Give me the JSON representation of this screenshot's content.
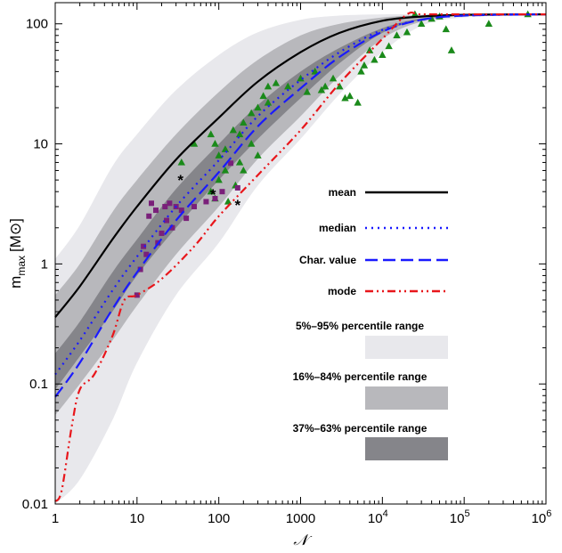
{
  "chart_data": {
    "type": "line",
    "scale": {
      "x": "log",
      "y": "log"
    },
    "xlim": [
      1,
      1000000
    ],
    "ylim": [
      0.01,
      150
    ],
    "xlabel": "𝒩",
    "ylabel": {
      "main": "m",
      "sub": "max",
      "unit": "[M⊙]"
    },
    "x_ticks": [
      {
        "value": 1,
        "label": "1"
      },
      {
        "value": 10,
        "label": "10"
      },
      {
        "value": 100,
        "label": "100"
      },
      {
        "value": 1000,
        "label": "1000"
      },
      {
        "value": 10000,
        "label": "10",
        "exp": "4"
      },
      {
        "value": 100000,
        "label": "10",
        "exp": "5"
      },
      {
        "value": 1000000,
        "label": "10",
        "exp": "6"
      }
    ],
    "y_ticks": [
      {
        "value": 0.01,
        "label": "0.01"
      },
      {
        "value": 0.1,
        "label": "0.1"
      },
      {
        "value": 1,
        "label": "1"
      },
      {
        "value": 10,
        "label": "10"
      },
      {
        "value": 100,
        "label": "100"
      }
    ],
    "bands": [
      {
        "name": "5%–95% percentile range",
        "color": "#e8e8ec",
        "x": [
          1,
          2,
          5,
          10,
          30,
          100,
          300,
          1000,
          3000,
          10000,
          30000,
          100000,
          1000000
        ],
        "low": [
          0.01,
          0.016,
          0.05,
          0.15,
          0.55,
          1.5,
          4.5,
          11,
          26,
          58,
          96,
          113,
          120
        ],
        "high": [
          1.1,
          2.1,
          6.5,
          12,
          28,
          55,
          85,
          108,
          117,
          120,
          120,
          120,
          120
        ]
      },
      {
        "name": "16%–84% percentile range",
        "color": "#b8b8bc",
        "x": [
          1,
          2,
          5,
          10,
          30,
          100,
          300,
          1000,
          3000,
          10000,
          30000,
          100000,
          1000000
        ],
        "low": [
          0.055,
          0.1,
          0.23,
          0.45,
          1.2,
          3.0,
          7.5,
          17,
          37,
          75,
          104,
          116,
          120
        ],
        "high": [
          0.55,
          1.0,
          2.7,
          5.0,
          12,
          27,
          50,
          80,
          100,
          113,
          118,
          120,
          120
        ]
      },
      {
        "name": "37%–63% percentile range",
        "color": "#85858a",
        "x": [
          1,
          2,
          5,
          10,
          30,
          100,
          300,
          1000,
          3000,
          10000,
          30000,
          100000,
          1000000
        ],
        "low": [
          0.09,
          0.17,
          0.4,
          0.8,
          2.0,
          5.0,
          11,
          24,
          47,
          84,
          108,
          117,
          120
        ],
        "high": [
          0.18,
          0.33,
          0.85,
          1.6,
          4.2,
          10,
          21,
          40,
          63,
          92,
          111,
          118,
          120
        ]
      }
    ],
    "series": [
      {
        "name": "mean",
        "color": "#000000",
        "dash": "",
        "x": [
          1,
          2,
          5,
          10,
          30,
          100,
          300,
          1000,
          3000,
          10000,
          30000,
          100000,
          1000000
        ],
        "y": [
          0.36,
          0.65,
          1.6,
          3.0,
          7.4,
          16.5,
          33,
          58,
          84,
          106,
          115,
          119,
          120
        ]
      },
      {
        "name": "median",
        "color": "#1a1aff",
        "dash": "2,5",
        "x": [
          1,
          2,
          5,
          10,
          30,
          100,
          300,
          1000,
          3000,
          10000,
          30000,
          100000,
          1000000
        ],
        "y": [
          0.12,
          0.23,
          0.6,
          1.15,
          3.0,
          7.3,
          17,
          34,
          58,
          89,
          108,
          117,
          120
        ]
      },
      {
        "name": "Char. value",
        "color": "#1a1aff",
        "dash": "14,6",
        "x": [
          1,
          2,
          5,
          10,
          30,
          100,
          300,
          1000,
          3000,
          10000,
          30000,
          100000,
          1000000
        ],
        "y": [
          0.078,
          0.15,
          0.42,
          0.85,
          2.3,
          5.8,
          14,
          29,
          53,
          86,
          108,
          117,
          120
        ]
      },
      {
        "name": "mode",
        "color": "#e8161b",
        "dash": "9,4,2,4,2,4",
        "x": [
          1,
          1.2,
          1.6,
          2,
          3,
          5,
          7,
          10,
          20,
          50,
          100,
          300,
          1000,
          3000,
          10000,
          20000,
          30000,
          100000,
          1000000
        ],
        "y": [
          0.0105,
          0.013,
          0.045,
          0.09,
          0.12,
          0.25,
          0.5,
          0.55,
          0.75,
          1.4,
          2.5,
          5.5,
          13,
          32,
          75,
          120,
          120,
          120,
          120
        ]
      }
    ],
    "scatter": [
      {
        "marker": "triangle",
        "color": "#1a8a1a",
        "points": [
          [
            35,
            7
          ],
          [
            50,
            10
          ],
          [
            80,
            12
          ],
          [
            90,
            10
          ],
          [
            100,
            8
          ],
          [
            120,
            9
          ],
          [
            150,
            13
          ],
          [
            180,
            12
          ],
          [
            200,
            15
          ],
          [
            250,
            18
          ],
          [
            300,
            20
          ],
          [
            350,
            25
          ],
          [
            400,
            30
          ],
          [
            500,
            32
          ],
          [
            700,
            30
          ],
          [
            1000,
            35
          ],
          [
            1500,
            40
          ],
          [
            2000,
            30
          ],
          [
            2500,
            35
          ],
          [
            3000,
            30
          ],
          [
            4000,
            25
          ],
          [
            5000,
            22
          ],
          [
            6000,
            45
          ],
          [
            8000,
            50
          ],
          [
            10000,
            55
          ],
          [
            12000,
            65
          ],
          [
            15000,
            80
          ],
          [
            20000,
            85
          ],
          [
            25000,
            120
          ],
          [
            30000,
            100
          ],
          [
            40000,
            110
          ],
          [
            50000,
            115
          ],
          [
            60000,
            90
          ],
          [
            70000,
            60
          ],
          [
            200000,
            100
          ],
          [
            600000,
            120
          ],
          [
            80,
            4
          ],
          [
            90,
            3.5
          ],
          [
            100,
            5
          ],
          [
            130,
            3.3
          ],
          [
            160,
            4.5
          ],
          [
            200,
            6
          ],
          [
            300,
            8
          ],
          [
            120,
            6
          ],
          [
            250,
            10
          ],
          [
            180,
            7
          ],
          [
            400,
            22
          ],
          [
            1200,
            27
          ],
          [
            1800,
            28
          ],
          [
            3500,
            24
          ],
          [
            5500,
            40
          ],
          [
            7000,
            60
          ]
        ]
      },
      {
        "marker": "square",
        "color": "#7a207a",
        "points": [
          [
            10,
            0.55
          ],
          [
            11,
            0.9
          ],
          [
            12,
            1.4
          ],
          [
            13,
            1.2
          ],
          [
            14,
            2.5
          ],
          [
            15,
            3.2
          ],
          [
            17,
            2.8
          ],
          [
            18,
            1.5
          ],
          [
            20,
            1.8
          ],
          [
            22,
            3.0
          ],
          [
            23,
            2.3
          ],
          [
            25,
            3.2
          ],
          [
            27,
            2.0
          ],
          [
            30,
            3.0
          ],
          [
            35,
            2.8
          ],
          [
            40,
            2.4
          ],
          [
            50,
            3.0
          ],
          [
            70,
            3.3
          ],
          [
            90,
            3.5
          ],
          [
            110,
            4.0
          ],
          [
            140,
            6.9
          ],
          [
            170,
            4.3
          ]
        ]
      },
      {
        "marker": "star",
        "color": "#000000",
        "points": [
          [
            34,
            5.0
          ],
          [
            85,
            3.8
          ],
          [
            170,
            3.1
          ]
        ]
      }
    ],
    "legend": {
      "placement": "center-right",
      "line_entries": [
        "mean",
        "median",
        "Char. value",
        "mode"
      ],
      "band_entries": [
        "5%–95% percentile range",
        "16%–84% percentile range",
        "37%–63% percentile range"
      ]
    }
  }
}
